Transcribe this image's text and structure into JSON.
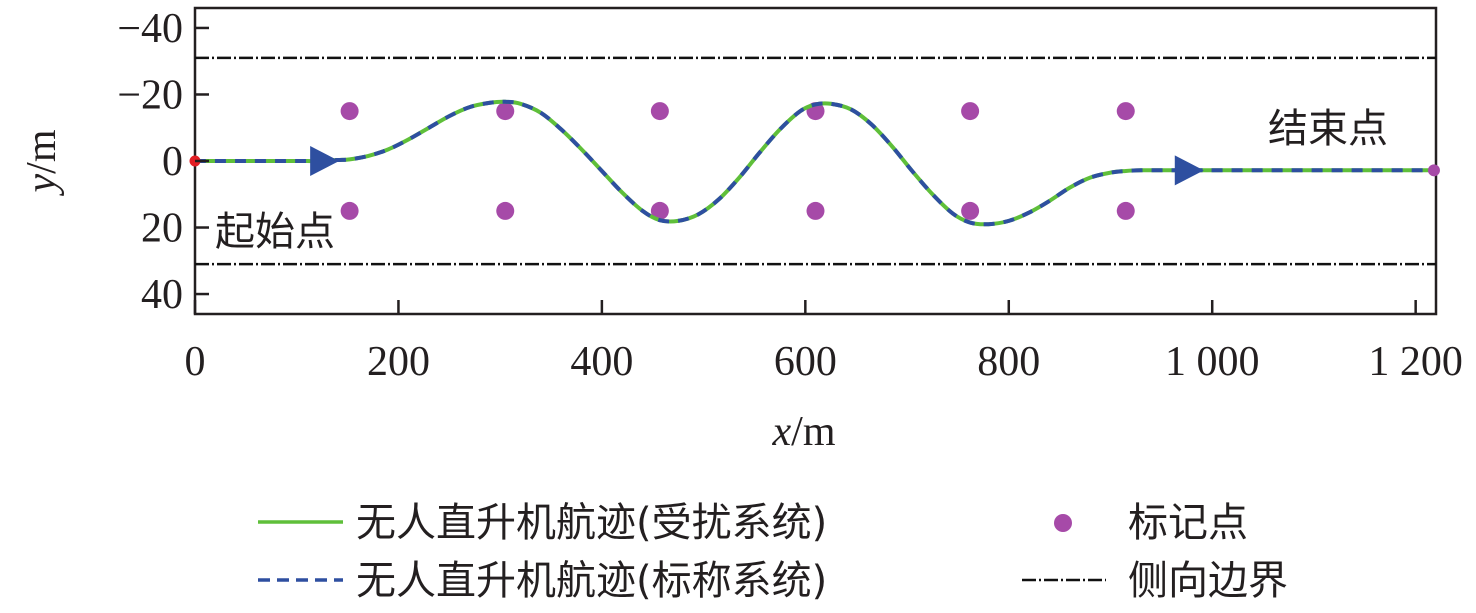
{
  "chart_data": {
    "type": "line",
    "title": "",
    "xlabel_var": "x",
    "xlabel_unit": "/m",
    "ylabel_var": "y",
    "ylabel_unit": "/m",
    "xlim": [
      0,
      1220
    ],
    "ylim": [
      46,
      -46
    ],
    "y_inverted": true,
    "grid": false,
    "x_ticks": [
      0,
      200,
      400,
      600,
      800,
      1000,
      1200
    ],
    "x_tick_labels": [
      "0",
      "200",
      "400",
      "600",
      "800",
      "1 000",
      "1 200"
    ],
    "y_ticks": [
      -40,
      -20,
      0,
      20,
      40
    ],
    "y_tick_labels": [
      "−40",
      "−20",
      "0",
      "20",
      "40"
    ],
    "lateral_boundaries": [
      -31,
      31
    ],
    "marker_points": [
      {
        "x": 152,
        "y": -15
      },
      {
        "x": 305,
        "y": -15
      },
      {
        "x": 457,
        "y": -15
      },
      {
        "x": 610,
        "y": -15
      },
      {
        "x": 762,
        "y": -15
      },
      {
        "x": 915,
        "y": -15
      },
      {
        "x": 152,
        "y": 15
      },
      {
        "x": 305,
        "y": 15
      },
      {
        "x": 457,
        "y": 15
      },
      {
        "x": 610,
        "y": 15
      },
      {
        "x": 762,
        "y": 15
      },
      {
        "x": 915,
        "y": 15
      }
    ],
    "trajectory_x": [
      0,
      50,
      100,
      120,
      140,
      152,
      170,
      190,
      210,
      230,
      250,
      270,
      290,
      305,
      320,
      340,
      360,
      380,
      400,
      420,
      440,
      457,
      475,
      495,
      515,
      535,
      555,
      575,
      595,
      610,
      625,
      645,
      665,
      685,
      705,
      725,
      745,
      762,
      780,
      800,
      820,
      840,
      860,
      880,
      900,
      915,
      930,
      950,
      980,
      1000,
      1050,
      1100,
      1150,
      1200,
      1218
    ],
    "trajectory_y": [
      0,
      0,
      0,
      0,
      -0.3,
      -0.5,
      -1.5,
      -3.5,
      -6.5,
      -10,
      -13.5,
      -16.2,
      -17.5,
      -17.8,
      -17.2,
      -14.5,
      -9.5,
      -3.5,
      3,
      9.5,
      15,
      17.8,
      18,
      16,
      11.5,
      5,
      -2.5,
      -9.5,
      -15,
      -17,
      -17.2,
      -15.5,
      -11,
      -4.5,
      3,
      10,
      15.8,
      18.5,
      19,
      18,
      15.5,
      12,
      8,
      5,
      3.5,
      3,
      2.8,
      2.8,
      2.8,
      2.8,
      2.8,
      2.8,
      2.8,
      2.8,
      2.8
    ],
    "direction_arrows": [
      {
        "x": 125,
        "y": 0
      },
      {
        "x": 975,
        "y": 2.8
      }
    ],
    "start_point": {
      "x": 0,
      "y": 0
    },
    "end_point": {
      "x": 1218,
      "y": 2.8
    },
    "annotations": {
      "start": "起始点",
      "end": "结束点"
    },
    "colors": {
      "disturbed": "#5fbf3a",
      "nominal": "#2e4fa0",
      "marker": "#a64aa8",
      "boundary": "#111111",
      "start": "#e31e24",
      "axis": "#231f20"
    },
    "legend": {
      "placement": "bottom",
      "entries": [
        {
          "label": "无人直升机航迹(受扰系统)",
          "style": "solid",
          "color": "#5fbf3a"
        },
        {
          "label": "标记点",
          "style": "dot",
          "color": "#a64aa8"
        },
        {
          "label": "无人直升机航迹(标称系统)",
          "style": "dashed",
          "color": "#2e4fa0"
        },
        {
          "label": "侧向边界",
          "style": "dashdot",
          "color": "#111111"
        }
      ]
    }
  }
}
